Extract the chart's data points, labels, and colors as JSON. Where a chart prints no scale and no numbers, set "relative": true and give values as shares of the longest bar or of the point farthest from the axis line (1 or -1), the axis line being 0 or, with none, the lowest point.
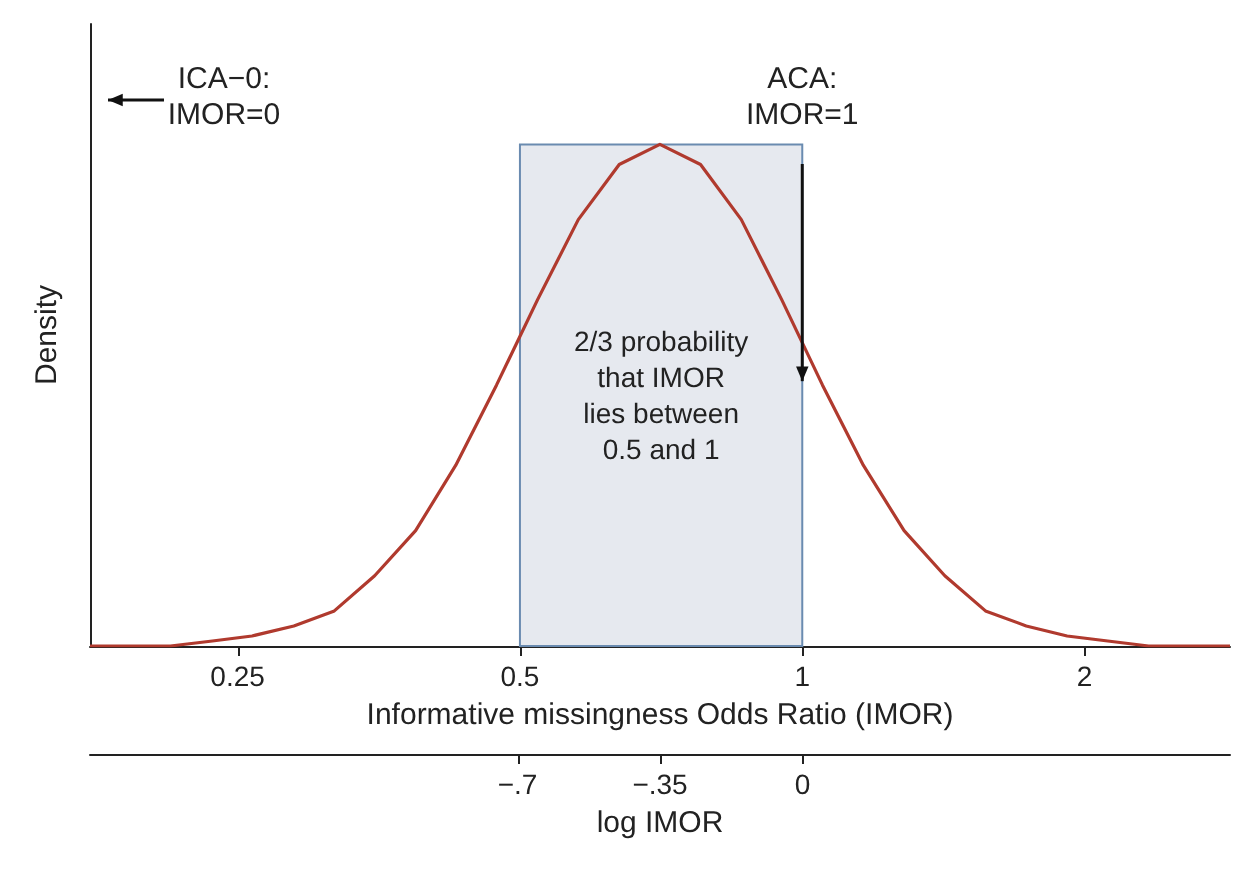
{
  "chart_data": {
    "type": "line",
    "relative": true,
    "color": "#b03a2e",
    "x": [
      0.174,
      0.192,
      0.212,
      0.235,
      0.259,
      0.287,
      0.317,
      0.35,
      0.387,
      0.427,
      0.472,
      0.522,
      0.577,
      0.638,
      0.705,
      0.779,
      0.861,
      0.951,
      1.051,
      1.162,
      1.284,
      1.419,
      1.568,
      1.733,
      1.916,
      2.117,
      2.34,
      2.586,
      2.858
    ],
    "log": "x",
    "values": [
      0,
      0,
      0,
      0.01,
      0.02,
      0.04,
      0.07,
      0.14,
      0.23,
      0.36,
      0.52,
      0.69,
      0.85,
      0.96,
      1,
      0.96,
      0.85,
      0.69,
      0.52,
      0.36,
      0.23,
      0.14,
      0.07,
      0.04,
      0.02,
      0.01,
      0,
      0,
      0
    ],
    "xlim": [
      0.174,
      2.858
    ],
    "xticks": [
      0.25,
      0.5,
      1,
      2
    ],
    "xlabel": "Informative missingness Odds Ratio (IMOR)",
    "x2lim": [
      -1.75,
      1.05
    ],
    "x2ticks": [
      {
        "value": -0.7,
        "label": "−.7"
      },
      {
        "value": -0.35,
        "label": "−.35"
      },
      0
    ],
    "x2label": "log IMOR",
    "ylabel": "Density",
    "bands": [
      {
        "axis": "x",
        "from": 0.5,
        "to": 1,
        "label": "2/3 probability\nthat IMOR\nlies between\n0.5 and 1",
        "color": "#e6e9ef"
      }
    ],
    "annotations": [
      "ICA−0:\nIMOR=0",
      {
        "text": "ACA:\nIMOR=1",
        "x": 1,
        "y": 0.52
      }
    ],
    "grid": false,
    "marker": "none",
    "line_style": "solid"
  }
}
